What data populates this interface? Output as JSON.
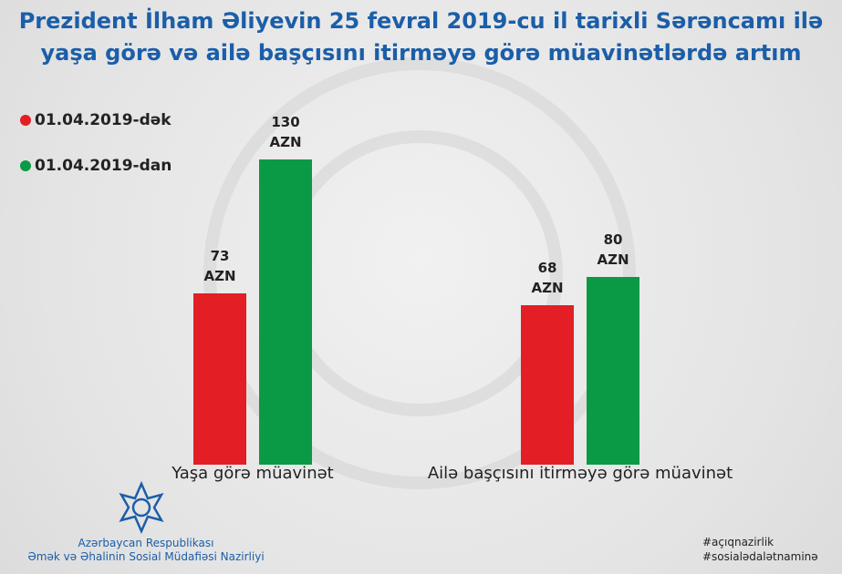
{
  "chart_data": {
    "type": "bar",
    "title": "Prezident İlham Əliyevin 25 fevral 2019-cu il tarixli Sərəncamı ilə\nyaşa görə və ailə başçısını itirməyə görə müavinətlərdə artım",
    "categories": [
      "Yaşa görə müavinət",
      "Ailə başçısını itirməyə görə müavinət"
    ],
    "series": [
      {
        "name": "01.04.2019-dək",
        "color": "#e31e24",
        "values": [
          73,
          68
        ],
        "value_labels": [
          "73\nAZN",
          "68\nAZN"
        ]
      },
      {
        "name": "01.04.2019-dan",
        "color": "#0a9a46",
        "values": [
          130,
          80
        ],
        "value_labels": [
          "130\nAZN",
          "80\nAZN"
        ]
      }
    ]
  },
  "footer": {
    "organization": [
      "Azərbaycan Respublikası",
      "Əmək və Əhalinin Sosial Müdafiəsi Nazirliyi"
    ],
    "hashtags": [
      "#açıqnazirlik",
      "#sosialədalətnaminə"
    ]
  }
}
